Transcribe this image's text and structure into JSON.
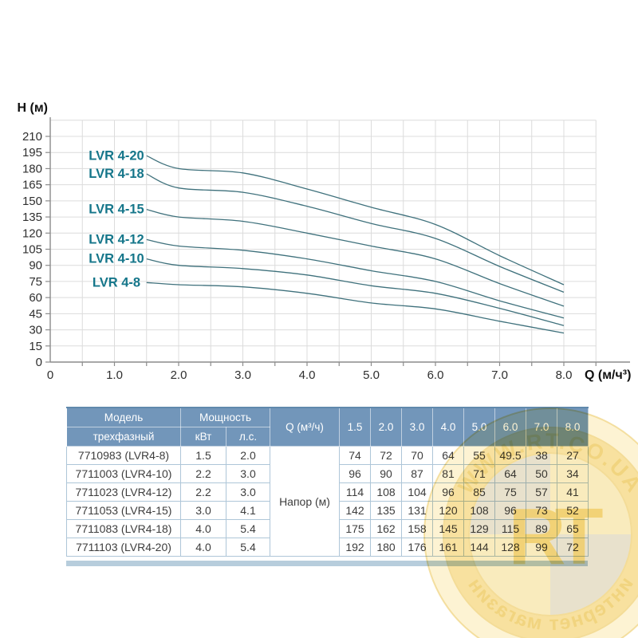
{
  "chart_data": {
    "type": "line",
    "title": "",
    "ylabel": "H (м)",
    "xlabel": "Q (м/ч³)",
    "ylim": [
      0,
      225
    ],
    "xlim": [
      0,
      8.5
    ],
    "grid": true,
    "y_ticks": [
      0,
      15,
      30,
      45,
      60,
      75,
      90,
      105,
      120,
      135,
      150,
      165,
      180,
      195,
      210
    ],
    "x_tick_labels": [
      "0",
      "1.0",
      "2.0",
      "3.0",
      "4.0",
      "5.0",
      "6.0",
      "7.0",
      "8.0"
    ],
    "x": [
      1.5,
      2.0,
      3.0,
      4.0,
      5.0,
      6.0,
      7.0,
      8.0
    ],
    "series": [
      {
        "name": "LVR 4-8",
        "values": [
          74,
          72,
          70,
          64,
          55,
          49.5,
          38,
          27
        ]
      },
      {
        "name": "LVR 4-10",
        "values": [
          96,
          90,
          87,
          81,
          71,
          64,
          50,
          34
        ]
      },
      {
        "name": "LVR 4-12",
        "values": [
          114,
          108,
          104,
          96,
          85,
          75,
          57,
          41
        ]
      },
      {
        "name": "LVR 4-15",
        "values": [
          142,
          135,
          131,
          120,
          108,
          96,
          73,
          52
        ]
      },
      {
        "name": "LVR 4-18",
        "values": [
          175,
          162,
          158,
          145,
          129,
          115,
          89,
          65
        ]
      },
      {
        "name": "LVR 4-20",
        "values": [
          192,
          180,
          176,
          161,
          144,
          128,
          99,
          72
        ]
      }
    ],
    "legend_position": "labels-left-of-curves",
    "colors": {
      "curve": "#3f717c",
      "series_label": "#15768a",
      "grid": "#dcdcdc"
    }
  },
  "table": {
    "header": {
      "model": "Модель",
      "model_sub": "трехфазный",
      "power": "Мощность",
      "power_kw": "кВт",
      "power_hp": "л.с.",
      "flow": "Q (м³/ч)",
      "flow_columns": [
        "1.5",
        "2.0",
        "3.0",
        "4.0",
        "5.0",
        "6.0",
        "7.0",
        "8.0"
      ],
      "merged_value_label": "Напор (м)"
    },
    "rows": [
      {
        "model": "7710983 (LVR4-8)",
        "kw": "1.5",
        "hp": "2.0",
        "values": [
          "74",
          "72",
          "70",
          "64",
          "55",
          "49.5",
          "38",
          "27"
        ]
      },
      {
        "model": "7711003 (LVR4-10)",
        "kw": "2.2",
        "hp": "3.0",
        "values": [
          "96",
          "90",
          "87",
          "81",
          "71",
          "64",
          "50",
          "34"
        ]
      },
      {
        "model": "7711023 (LVR4-12)",
        "kw": "2.2",
        "hp": "3.0",
        "values": [
          "114",
          "108",
          "104",
          "96",
          "85",
          "75",
          "57",
          "41"
        ]
      },
      {
        "model": "7711053 (LVR4-15)",
        "kw": "3.0",
        "hp": "4.1",
        "values": [
          "142",
          "135",
          "131",
          "120",
          "108",
          "96",
          "73",
          "52"
        ]
      },
      {
        "model": "7711083 (LVR4-18)",
        "kw": "4.0",
        "hp": "5.4",
        "values": [
          "175",
          "162",
          "158",
          "145",
          "129",
          "115",
          "89",
          "65"
        ]
      },
      {
        "model": "7711103 (LVR4-20)",
        "kw": "4.0",
        "hp": "5.4",
        "values": [
          "192",
          "180",
          "176",
          "161",
          "144",
          "128",
          "99",
          "72"
        ]
      }
    ],
    "header_bg": "#7296ba"
  },
  "watermark": {
    "site": "WWW.RT.CO.UA",
    "shop_label": "интернет магазин",
    "initials": "RT",
    "color": "#efc54a"
  }
}
